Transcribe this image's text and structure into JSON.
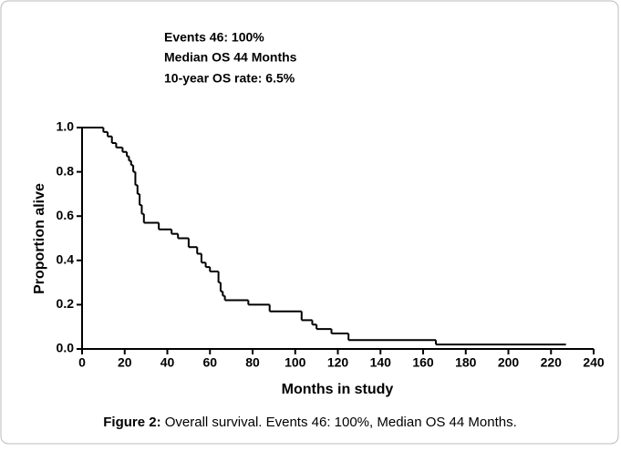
{
  "chart_data": {
    "type": "step",
    "annotations": [
      "Events 46: 100%",
      "Median OS 44 Months",
      "10-year OS rate: 6.5%"
    ],
    "xlabel": "Months in study",
    "ylabel": "Proportion alive",
    "caption_label": "Figure 2:",
    "caption": "Overall survival. Events 46: 100%, Median OS 44 Months.",
    "color": "#000000",
    "x": [
      0,
      10,
      12,
      14,
      16,
      19,
      21,
      22,
      23,
      24,
      25,
      26,
      27,
      28,
      29,
      36,
      42,
      45,
      50,
      54,
      56,
      58,
      60,
      64,
      65,
      66,
      67,
      78,
      88,
      103,
      108,
      110,
      117,
      125,
      166,
      227
    ],
    "values": [
      1.0,
      0.98,
      0.96,
      0.93,
      0.91,
      0.89,
      0.87,
      0.85,
      0.83,
      0.8,
      0.74,
      0.7,
      0.65,
      0.61,
      0.57,
      0.54,
      0.52,
      0.5,
      0.46,
      0.43,
      0.39,
      0.37,
      0.35,
      0.3,
      0.26,
      0.24,
      0.22,
      0.2,
      0.17,
      0.13,
      0.11,
      0.09,
      0.07,
      0.04,
      0.02,
      0.02
    ],
    "xlim": [
      0,
      240
    ],
    "xticks": [
      0,
      20,
      40,
      60,
      80,
      100,
      120,
      140,
      160,
      180,
      200,
      220,
      240
    ],
    "ylim": [
      0,
      1
    ],
    "yticks": [
      {
        "value": 0,
        "label": "0.0"
      },
      {
        "value": 0.2,
        "label": "0.2"
      },
      {
        "value": 0.4,
        "label": "0.4"
      },
      {
        "value": 0.6,
        "label": "0.6"
      },
      {
        "value": 0.8,
        "label": "0.8"
      },
      {
        "value": 1,
        "label": "1.0"
      }
    ]
  }
}
